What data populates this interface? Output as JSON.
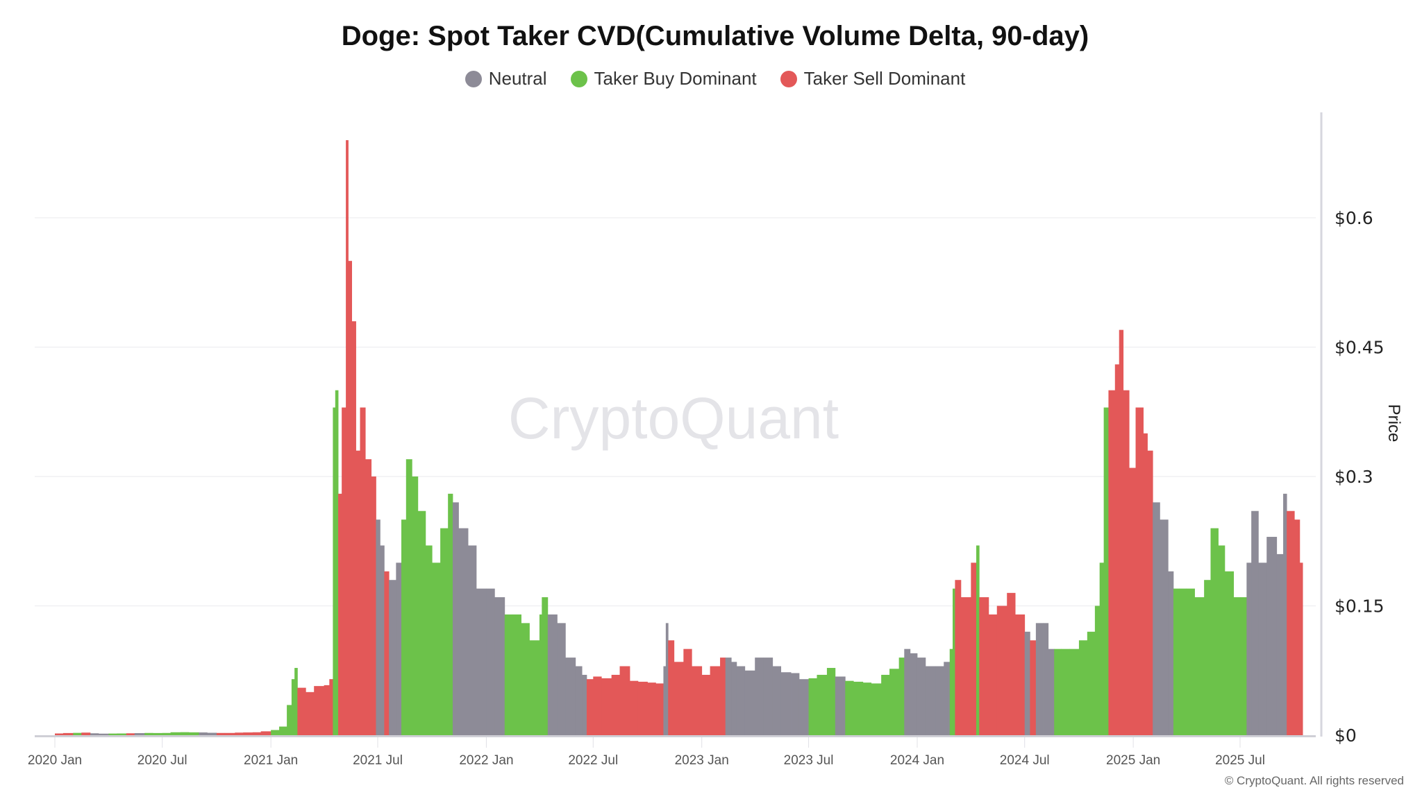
{
  "chart_data": {
    "type": "bar",
    "title": "Doge: Spot Taker CVD(Cumulative Volume Delta, 90-day)",
    "ylabel": "Price",
    "xlabel": "",
    "ylim": [
      0,
      0.72
    ],
    "yticks": [
      "$0",
      "$0.15",
      "$0.3",
      "$0.45",
      "$0.6"
    ],
    "ytick_values": [
      0,
      0.15,
      0.3,
      0.45,
      0.6
    ],
    "xticks": [
      "2020 Jan",
      "2020 Jul",
      "2021 Jan",
      "2021 Jul",
      "2022 Jan",
      "2022 Jul",
      "2023 Jan",
      "2023 Jul",
      "2024 Jan",
      "2024 Jul",
      "2025 Jan",
      "2025 Jul"
    ],
    "xtick_dates": [
      "2020-01-01",
      "2020-07-01",
      "2021-01-01",
      "2021-07-01",
      "2022-01-01",
      "2022-07-01",
      "2023-01-01",
      "2023-07-01",
      "2024-01-01",
      "2024-07-01",
      "2025-01-01",
      "2025-07-01"
    ],
    "grid": true,
    "legend_position": "top",
    "legend": [
      {
        "key": "N",
        "name": "Neutral",
        "color": "#8d8b97"
      },
      {
        "key": "B",
        "name": "Taker Buy Dominant",
        "color": "#6cc24a"
      },
      {
        "key": "S",
        "name": "Taker Sell Dominant",
        "color": "#e35858"
      }
    ],
    "end_date": "2025-10-15",
    "points": [
      [
        "2020-01-01",
        0.002,
        "S"
      ],
      [
        "2020-01-15",
        0.0025,
        "S"
      ],
      [
        "2020-02-01",
        0.0027,
        "B"
      ],
      [
        "2020-02-15",
        0.003,
        "S"
      ],
      [
        "2020-03-01",
        0.0022,
        "N"
      ],
      [
        "2020-03-15",
        0.0018,
        "N"
      ],
      [
        "2020-04-01",
        0.0019,
        "B"
      ],
      [
        "2020-04-15",
        0.002,
        "B"
      ],
      [
        "2020-05-01",
        0.0022,
        "S"
      ],
      [
        "2020-05-15",
        0.0024,
        "N"
      ],
      [
        "2020-06-01",
        0.0026,
        "B"
      ],
      [
        "2020-06-15",
        0.0025,
        "B"
      ],
      [
        "2020-07-01",
        0.0026,
        "B"
      ],
      [
        "2020-07-15",
        0.0034,
        "B"
      ],
      [
        "2020-08-01",
        0.0035,
        "B"
      ],
      [
        "2020-08-15",
        0.0033,
        "B"
      ],
      [
        "2020-09-01",
        0.0032,
        "N"
      ],
      [
        "2020-09-15",
        0.0028,
        "N"
      ],
      [
        "2020-10-01",
        0.0026,
        "S"
      ],
      [
        "2020-10-15",
        0.0026,
        "S"
      ],
      [
        "2020-11-01",
        0.003,
        "S"
      ],
      [
        "2020-11-15",
        0.0032,
        "S"
      ],
      [
        "2020-12-01",
        0.0034,
        "S"
      ],
      [
        "2020-12-15",
        0.0045,
        "S"
      ],
      [
        "2021-01-01",
        0.006,
        "B"
      ],
      [
        "2021-01-15",
        0.01,
        "B"
      ],
      [
        "2021-01-28",
        0.035,
        "B"
      ],
      [
        "2021-02-05",
        0.065,
        "B"
      ],
      [
        "2021-02-10",
        0.078,
        "B"
      ],
      [
        "2021-02-15",
        0.055,
        "S"
      ],
      [
        "2021-03-01",
        0.05,
        "S"
      ],
      [
        "2021-03-15",
        0.057,
        "S"
      ],
      [
        "2021-04-01",
        0.058,
        "S"
      ],
      [
        "2021-04-10",
        0.065,
        "S"
      ],
      [
        "2021-04-16",
        0.38,
        "B"
      ],
      [
        "2021-04-20",
        0.4,
        "B"
      ],
      [
        "2021-04-25",
        0.28,
        "S"
      ],
      [
        "2021-05-01",
        0.38,
        "S"
      ],
      [
        "2021-05-08",
        0.69,
        "S"
      ],
      [
        "2021-05-12",
        0.55,
        "S"
      ],
      [
        "2021-05-18",
        0.48,
        "S"
      ],
      [
        "2021-05-25",
        0.33,
        "S"
      ],
      [
        "2021-06-01",
        0.38,
        "S"
      ],
      [
        "2021-06-10",
        0.32,
        "S"
      ],
      [
        "2021-06-20",
        0.3,
        "S"
      ],
      [
        "2021-06-28",
        0.25,
        "N"
      ],
      [
        "2021-07-05",
        0.22,
        "N"
      ],
      [
        "2021-07-12",
        0.19,
        "S"
      ],
      [
        "2021-07-20",
        0.18,
        "N"
      ],
      [
        "2021-08-01",
        0.2,
        "N"
      ],
      [
        "2021-08-10",
        0.25,
        "B"
      ],
      [
        "2021-08-18",
        0.32,
        "B"
      ],
      [
        "2021-08-28",
        0.3,
        "B"
      ],
      [
        "2021-09-07",
        0.26,
        "B"
      ],
      [
        "2021-09-20",
        0.22,
        "B"
      ],
      [
        "2021-10-01",
        0.2,
        "B"
      ],
      [
        "2021-10-15",
        0.24,
        "B"
      ],
      [
        "2021-10-28",
        0.28,
        "B"
      ],
      [
        "2021-11-05",
        0.27,
        "N"
      ],
      [
        "2021-11-15",
        0.24,
        "N"
      ],
      [
        "2021-12-01",
        0.22,
        "N"
      ],
      [
        "2021-12-15",
        0.17,
        "N"
      ],
      [
        "2022-01-01",
        0.17,
        "N"
      ],
      [
        "2022-01-15",
        0.16,
        "N"
      ],
      [
        "2022-02-01",
        0.14,
        "B"
      ],
      [
        "2022-02-15",
        0.14,
        "B"
      ],
      [
        "2022-03-01",
        0.13,
        "B"
      ],
      [
        "2022-03-15",
        0.11,
        "B"
      ],
      [
        "2022-04-01",
        0.14,
        "B"
      ],
      [
        "2022-04-05",
        0.16,
        "B"
      ],
      [
        "2022-04-15",
        0.14,
        "N"
      ],
      [
        "2022-05-01",
        0.13,
        "N"
      ],
      [
        "2022-05-15",
        0.09,
        "N"
      ],
      [
        "2022-06-01",
        0.08,
        "N"
      ],
      [
        "2022-06-12",
        0.07,
        "N"
      ],
      [
        "2022-06-20",
        0.065,
        "S"
      ],
      [
        "2022-07-01",
        0.068,
        "S"
      ],
      [
        "2022-07-15",
        0.066,
        "S"
      ],
      [
        "2022-08-01",
        0.07,
        "S"
      ],
      [
        "2022-08-15",
        0.08,
        "S"
      ],
      [
        "2022-09-01",
        0.063,
        "S"
      ],
      [
        "2022-09-15",
        0.062,
        "S"
      ],
      [
        "2022-10-01",
        0.061,
        "S"
      ],
      [
        "2022-10-15",
        0.06,
        "S"
      ],
      [
        "2022-10-28",
        0.08,
        "N"
      ],
      [
        "2022-11-01",
        0.13,
        "N"
      ],
      [
        "2022-11-05",
        0.11,
        "S"
      ],
      [
        "2022-11-15",
        0.085,
        "S"
      ],
      [
        "2022-12-01",
        0.1,
        "S"
      ],
      [
        "2022-12-15",
        0.08,
        "S"
      ],
      [
        "2023-01-01",
        0.07,
        "S"
      ],
      [
        "2023-01-15",
        0.08,
        "S"
      ],
      [
        "2023-02-01",
        0.09,
        "S"
      ],
      [
        "2023-02-10",
        0.09,
        "N"
      ],
      [
        "2023-02-20",
        0.085,
        "N"
      ],
      [
        "2023-03-01",
        0.08,
        "N"
      ],
      [
        "2023-03-15",
        0.075,
        "N"
      ],
      [
        "2023-04-01",
        0.09,
        "N"
      ],
      [
        "2023-04-15",
        0.09,
        "N"
      ],
      [
        "2023-05-01",
        0.08,
        "N"
      ],
      [
        "2023-05-15",
        0.073,
        "N"
      ],
      [
        "2023-06-01",
        0.072,
        "N"
      ],
      [
        "2023-06-15",
        0.065,
        "N"
      ],
      [
        "2023-07-01",
        0.066,
        "B"
      ],
      [
        "2023-07-15",
        0.07,
        "B"
      ],
      [
        "2023-08-01",
        0.078,
        "B"
      ],
      [
        "2023-08-15",
        0.068,
        "N"
      ],
      [
        "2023-09-01",
        0.063,
        "B"
      ],
      [
        "2023-09-15",
        0.062,
        "B"
      ],
      [
        "2023-10-01",
        0.061,
        "B"
      ],
      [
        "2023-10-15",
        0.06,
        "B"
      ],
      [
        "2023-11-01",
        0.07,
        "B"
      ],
      [
        "2023-11-15",
        0.077,
        "B"
      ],
      [
        "2023-12-01",
        0.09,
        "B"
      ],
      [
        "2023-12-10",
        0.1,
        "N"
      ],
      [
        "2023-12-20",
        0.095,
        "N"
      ],
      [
        "2024-01-01",
        0.09,
        "N"
      ],
      [
        "2024-01-15",
        0.08,
        "N"
      ],
      [
        "2024-02-01",
        0.08,
        "N"
      ],
      [
        "2024-02-15",
        0.085,
        "N"
      ],
      [
        "2024-02-25",
        0.1,
        "B"
      ],
      [
        "2024-03-01",
        0.17,
        "B"
      ],
      [
        "2024-03-05",
        0.18,
        "S"
      ],
      [
        "2024-03-15",
        0.16,
        "S"
      ],
      [
        "2024-04-01",
        0.2,
        "S"
      ],
      [
        "2024-04-10",
        0.22,
        "B"
      ],
      [
        "2024-04-15",
        0.16,
        "S"
      ],
      [
        "2024-05-01",
        0.14,
        "S"
      ],
      [
        "2024-05-15",
        0.15,
        "S"
      ],
      [
        "2024-06-01",
        0.165,
        "S"
      ],
      [
        "2024-06-15",
        0.14,
        "S"
      ],
      [
        "2024-07-01",
        0.12,
        "N"
      ],
      [
        "2024-07-10",
        0.11,
        "S"
      ],
      [
        "2024-07-20",
        0.13,
        "N"
      ],
      [
        "2024-08-01",
        0.13,
        "N"
      ],
      [
        "2024-08-10",
        0.1,
        "N"
      ],
      [
        "2024-08-20",
        0.1,
        "B"
      ],
      [
        "2024-09-01",
        0.1,
        "B"
      ],
      [
        "2024-09-15",
        0.1,
        "B"
      ],
      [
        "2024-10-01",
        0.11,
        "B"
      ],
      [
        "2024-10-15",
        0.12,
        "B"
      ],
      [
        "2024-10-28",
        0.15,
        "B"
      ],
      [
        "2024-11-05",
        0.2,
        "B"
      ],
      [
        "2024-11-12",
        0.38,
        "B"
      ],
      [
        "2024-11-20",
        0.4,
        "S"
      ],
      [
        "2024-12-01",
        0.43,
        "S"
      ],
      [
        "2024-12-08",
        0.47,
        "S"
      ],
      [
        "2024-12-15",
        0.4,
        "S"
      ],
      [
        "2024-12-25",
        0.31,
        "S"
      ],
      [
        "2025-01-05",
        0.38,
        "S"
      ],
      [
        "2025-01-18",
        0.35,
        "S"
      ],
      [
        "2025-01-25",
        0.33,
        "S"
      ],
      [
        "2025-02-03",
        0.27,
        "N"
      ],
      [
        "2025-02-15",
        0.25,
        "N"
      ],
      [
        "2025-03-01",
        0.19,
        "N"
      ],
      [
        "2025-03-10",
        0.17,
        "B"
      ],
      [
        "2025-03-20",
        0.17,
        "B"
      ],
      [
        "2025-04-01",
        0.17,
        "B"
      ],
      [
        "2025-04-15",
        0.16,
        "B"
      ],
      [
        "2025-05-01",
        0.18,
        "B"
      ],
      [
        "2025-05-12",
        0.24,
        "B"
      ],
      [
        "2025-05-25",
        0.22,
        "B"
      ],
      [
        "2025-06-05",
        0.19,
        "B"
      ],
      [
        "2025-06-20",
        0.16,
        "B"
      ],
      [
        "2025-07-01",
        0.16,
        "B"
      ],
      [
        "2025-07-12",
        0.2,
        "N"
      ],
      [
        "2025-07-20",
        0.26,
        "N"
      ],
      [
        "2025-08-01",
        0.2,
        "N"
      ],
      [
        "2025-08-15",
        0.23,
        "N"
      ],
      [
        "2025-09-01",
        0.21,
        "N"
      ],
      [
        "2025-09-12",
        0.28,
        "N"
      ],
      [
        "2025-09-18",
        0.26,
        "S"
      ],
      [
        "2025-10-01",
        0.25,
        "S"
      ],
      [
        "2025-10-10",
        0.2,
        "S"
      ]
    ]
  },
  "watermark": "CryptoQuant",
  "copyright": "© CryptoQuant. All rights reserved"
}
